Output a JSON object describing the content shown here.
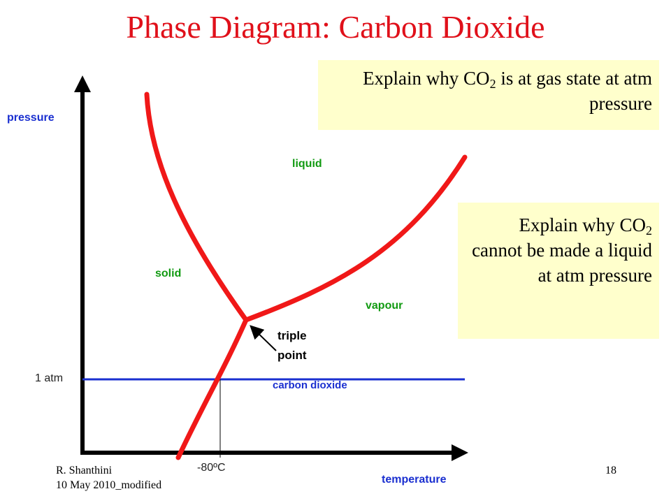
{
  "title": "Phase Diagram: Carbon Dioxide",
  "axes": {
    "y_label": "pressure",
    "x_label": "temperature",
    "pressure_mark": "1 atm",
    "temperature_mark": "-80ºC"
  },
  "regions": {
    "liquid": "liquid",
    "solid": "solid",
    "vapour": "vapour"
  },
  "triple_point": [
    "triple",
    "point"
  ],
  "line_label": "carbon dioxide",
  "callouts": [
    {
      "before": "Explain why CO",
      "sub": "2",
      "after": " is at gas state at atm pressure"
    },
    {
      "before": "Explain why CO",
      "sub": "2",
      "after": " cannot be made a liquid at atm pressure"
    }
  ],
  "footer": {
    "author": "R. Shanthini",
    "date": "10 May 2010_modified",
    "page": "18"
  }
}
